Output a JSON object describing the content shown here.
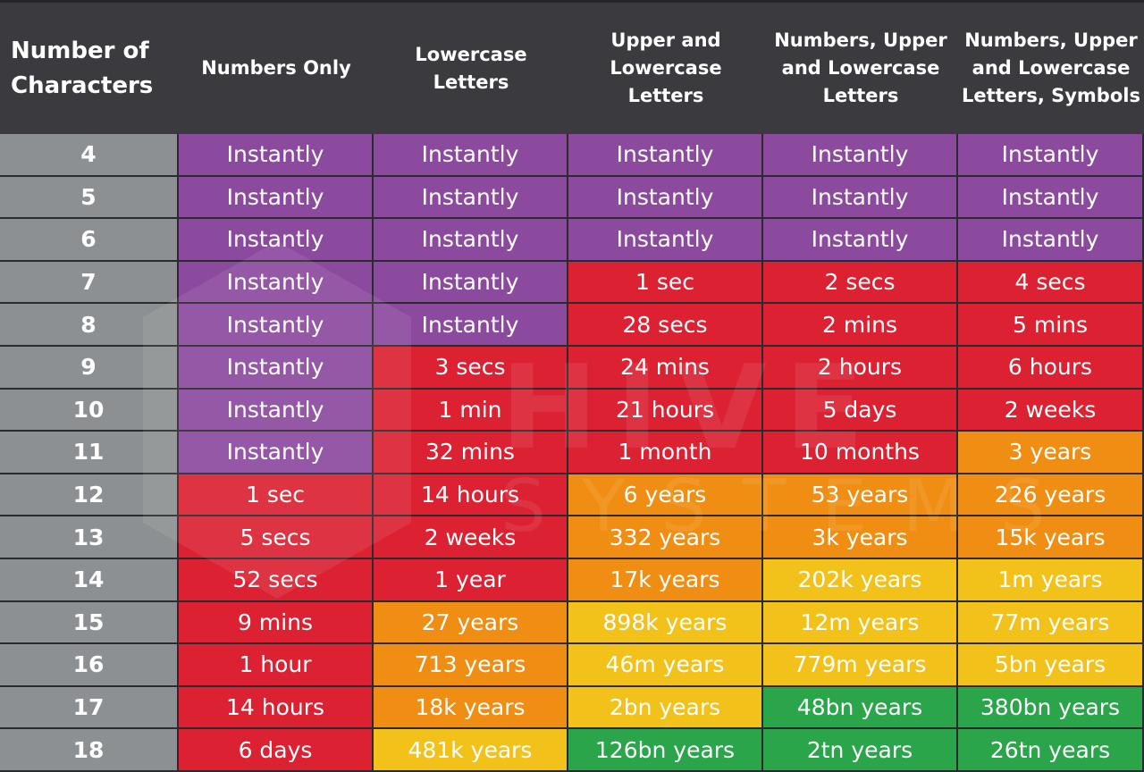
{
  "chart_data": {
    "type": "table",
    "columns": [
      "Number of\nCharacters",
      "Numbers Only",
      "Lowercase\nLetters",
      "Upper and\nLowercase\nLetters",
      "Numbers, Upper\nand Lowercase\nLetters",
      "Numbers, Upper\nand Lowercase\nLetters, Symbols"
    ],
    "rows": [
      {
        "chars": "4",
        "values": [
          "Instantly",
          "Instantly",
          "Instantly",
          "Instantly",
          "Instantly"
        ],
        "levels": [
          "instant",
          "instant",
          "instant",
          "instant",
          "instant"
        ]
      },
      {
        "chars": "5",
        "values": [
          "Instantly",
          "Instantly",
          "Instantly",
          "Instantly",
          "Instantly"
        ],
        "levels": [
          "instant",
          "instant",
          "instant",
          "instant",
          "instant"
        ]
      },
      {
        "chars": "6",
        "values": [
          "Instantly",
          "Instantly",
          "Instantly",
          "Instantly",
          "Instantly"
        ],
        "levels": [
          "instant",
          "instant",
          "instant",
          "instant",
          "instant"
        ]
      },
      {
        "chars": "7",
        "values": [
          "Instantly",
          "Instantly",
          "1 sec",
          "2 secs",
          "4 secs"
        ],
        "levels": [
          "instant",
          "instant",
          "red",
          "red",
          "red"
        ]
      },
      {
        "chars": "8",
        "values": [
          "Instantly",
          "Instantly",
          "28 secs",
          "2 mins",
          "5 mins"
        ],
        "levels": [
          "instant",
          "instant",
          "red",
          "red",
          "red"
        ]
      },
      {
        "chars": "9",
        "values": [
          "Instantly",
          "3 secs",
          "24 mins",
          "2 hours",
          "6 hours"
        ],
        "levels": [
          "instant",
          "red",
          "red",
          "red",
          "red"
        ]
      },
      {
        "chars": "10",
        "values": [
          "Instantly",
          "1 min",
          "21 hours",
          "5 days",
          "2 weeks"
        ],
        "levels": [
          "instant",
          "red",
          "red",
          "red",
          "red"
        ]
      },
      {
        "chars": "11",
        "values": [
          "Instantly",
          "32 mins",
          "1 month",
          "10 months",
          "3 years"
        ],
        "levels": [
          "instant",
          "red",
          "red",
          "red",
          "orange"
        ]
      },
      {
        "chars": "12",
        "values": [
          "1 sec",
          "14 hours",
          "6 years",
          "53 years",
          "226 years"
        ],
        "levels": [
          "red",
          "red",
          "orange",
          "orange",
          "orange"
        ]
      },
      {
        "chars": "13",
        "values": [
          "5 secs",
          "2 weeks",
          "332 years",
          "3k years",
          "15k years"
        ],
        "levels": [
          "red",
          "red",
          "orange",
          "orange",
          "orange"
        ]
      },
      {
        "chars": "14",
        "values": [
          "52 secs",
          "1 year",
          "17k years",
          "202k years",
          "1m years"
        ],
        "levels": [
          "red",
          "red",
          "orange",
          "yellow",
          "yellow"
        ]
      },
      {
        "chars": "15",
        "values": [
          "9 mins",
          "27 years",
          "898k years",
          "12m years",
          "77m years"
        ],
        "levels": [
          "red",
          "orange",
          "yellow",
          "yellow",
          "yellow"
        ]
      },
      {
        "chars": "16",
        "values": [
          "1 hour",
          "713 years",
          "46m years",
          "779m years",
          "5bn years"
        ],
        "levels": [
          "red",
          "orange",
          "yellow",
          "yellow",
          "yellow"
        ]
      },
      {
        "chars": "17",
        "values": [
          "14 hours",
          "18k years",
          "2bn years",
          "48bn years",
          "380bn years"
        ],
        "levels": [
          "red",
          "orange",
          "yellow",
          "green",
          "green"
        ]
      },
      {
        "chars": "18",
        "values": [
          "6 days",
          "481k years",
          "126bn years",
          "2tn years",
          "26tn years"
        ],
        "levels": [
          "red",
          "yellow",
          "green",
          "green",
          "green"
        ]
      }
    ],
    "level_colors": {
      "instant": "#8c4a9f",
      "red": "#dc2132",
      "orange": "#ef8e12",
      "yellow": "#f2c21b",
      "green": "#2aa54a"
    },
    "header_background": "#3b3b3f",
    "label_column_background": "#8d9092"
  },
  "watermark": {
    "logo_icon": "hexagon-logo-icon",
    "line1": "HIVE",
    "line2": "SYSTEMS"
  }
}
